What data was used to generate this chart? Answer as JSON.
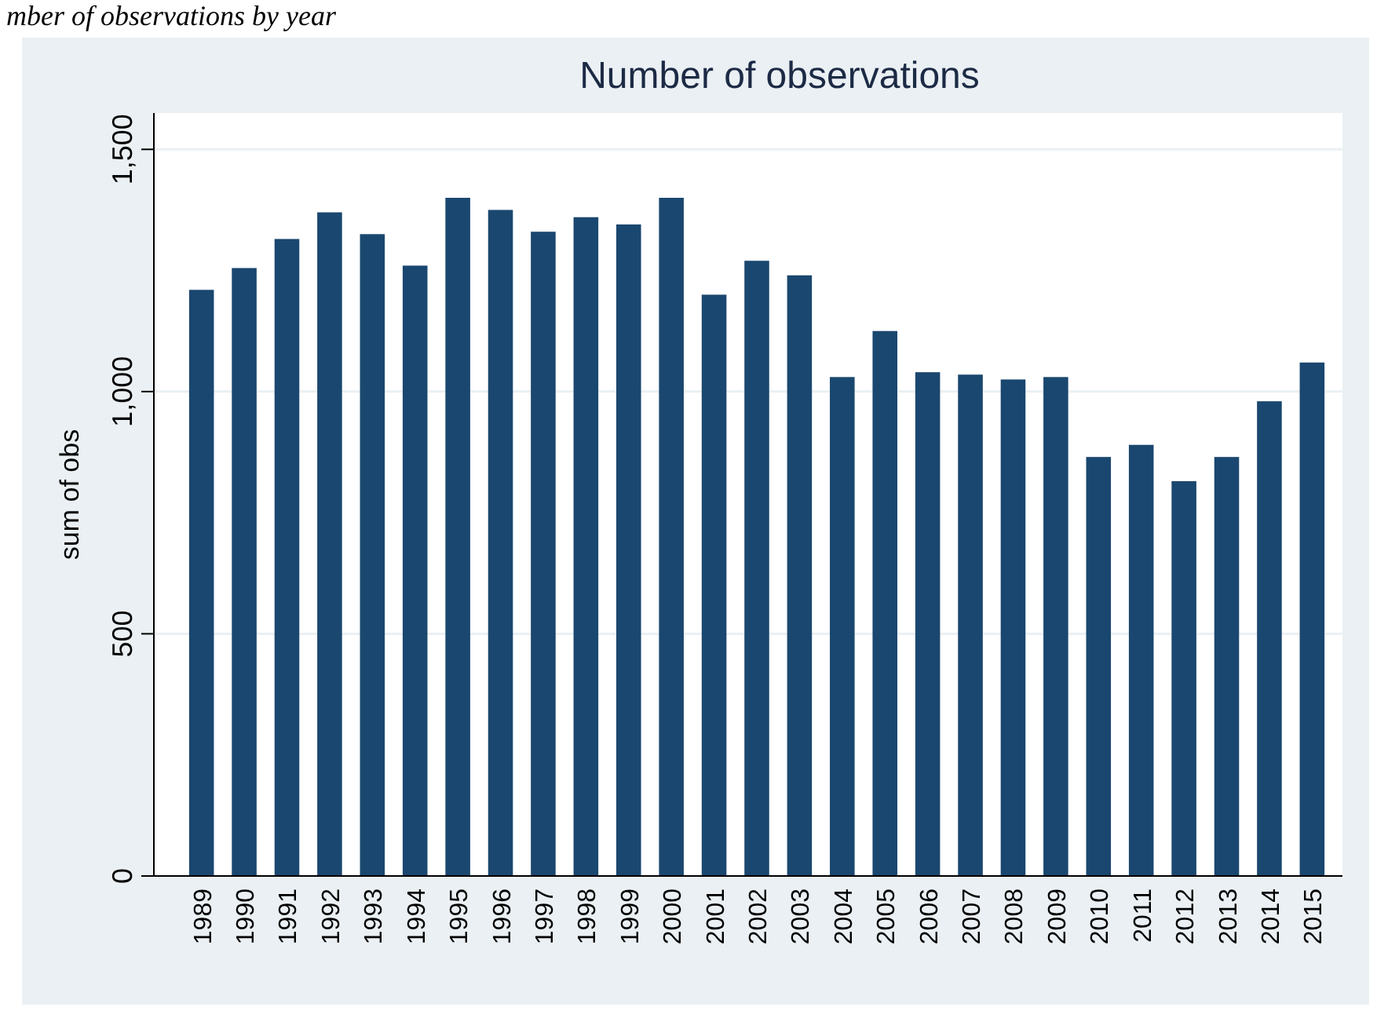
{
  "chart_data": {
    "type": "bar",
    "title": "Number of observations",
    "ylabel": "sum of obs",
    "annotations": [
      "mber of observations by year"
    ],
    "categories": [
      "1989",
      "1990",
      "1991",
      "1992",
      "1993",
      "1994",
      "1995",
      "1996",
      "1997",
      "1998",
      "1999",
      "2000",
      "2001",
      "2002",
      "2003",
      "2004",
      "2005",
      "2006",
      "2007",
      "2008",
      "2009",
      "2010",
      "2011",
      "2012",
      "2013",
      "2014",
      "2015"
    ],
    "values": [
      1210,
      1255,
      1315,
      1370,
      1325,
      1260,
      1400,
      1375,
      1330,
      1360,
      1345,
      1400,
      1200,
      1270,
      1240,
      1030,
      1125,
      1040,
      1035,
      1025,
      1030,
      865,
      890,
      815,
      865,
      980,
      1060
    ],
    "color": "#1a476f",
    "ylim": [
      0,
      1575
    ],
    "yticks": [
      {
        "value": 0,
        "label": "0"
      },
      {
        "value": 500,
        "label": "500"
      },
      {
        "value": 1000,
        "label": "1,000"
      },
      {
        "value": 1500,
        "label": "1,500"
      }
    ],
    "grid": "y"
  }
}
